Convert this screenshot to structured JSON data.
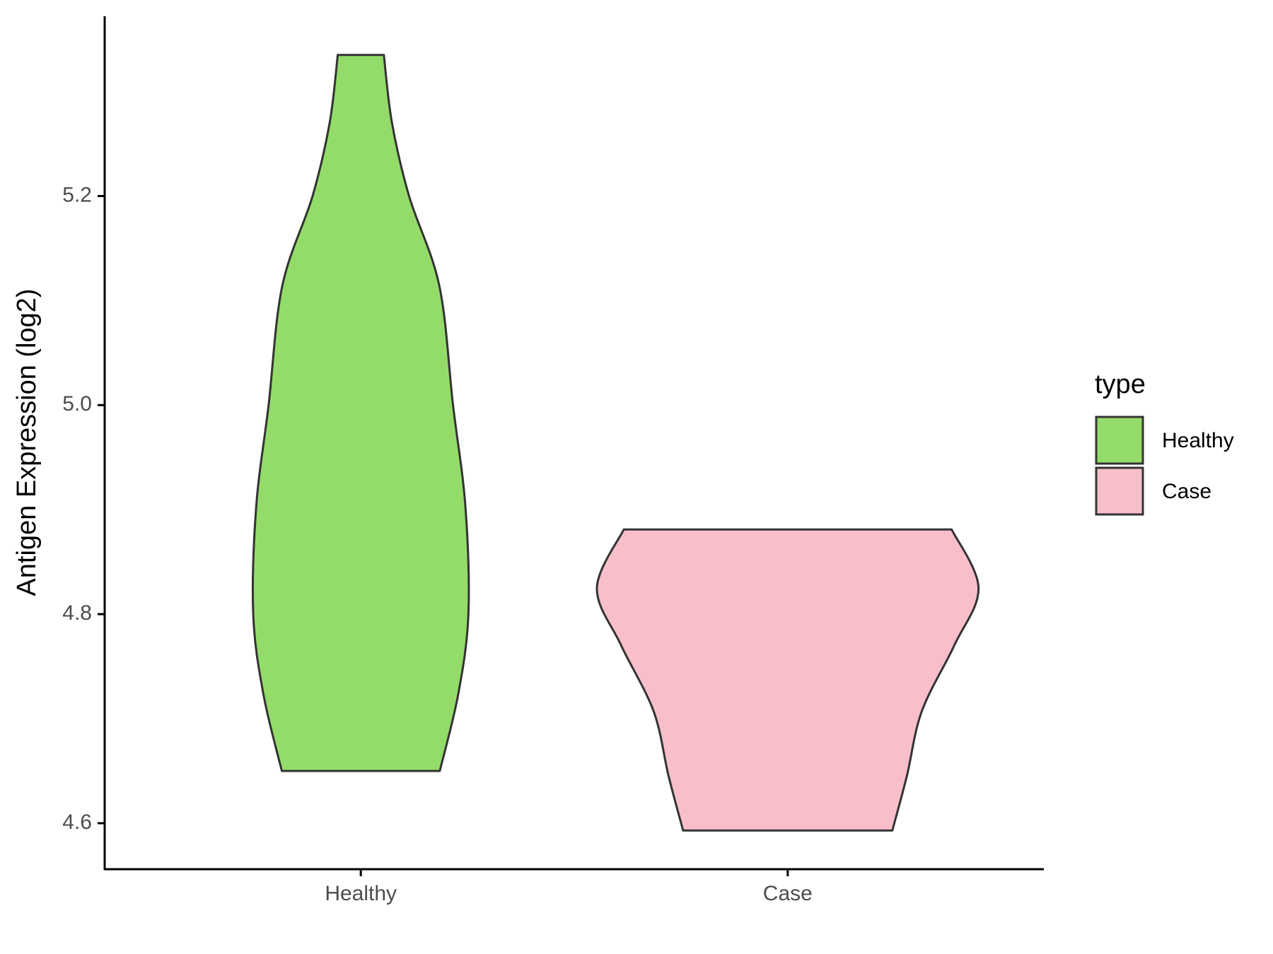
{
  "chart_data": {
    "type": "violin",
    "y_label": "Antigen Expression (log2)",
    "legend_title": "type",
    "categories": [
      "Healthy",
      "Case"
    ],
    "series": [
      {
        "name": "Healthy",
        "color": "#94DC6A",
        "y": [
          4.65,
          4.723,
          4.8,
          4.903,
          5.0,
          5.114,
          5.2,
          5.27,
          5.335
        ],
        "width": [
          0.185,
          0.228,
          0.252,
          0.245,
          0.216,
          0.184,
          0.113,
          0.073,
          0.054
        ]
      },
      {
        "name": "Case",
        "color": "#F8BFCA",
        "y": [
          4.593,
          4.645,
          4.707,
          4.77,
          4.825,
          4.881
        ],
        "width": [
          0.245,
          0.279,
          0.314,
          0.39,
          0.447,
          0.384
        ]
      }
    ],
    "ylim": [
      4.556,
      5.372
    ],
    "yticks": [
      {
        "value": 4.6,
        "label": "4.6"
      },
      {
        "value": 4.8,
        "label": "4.8"
      },
      {
        "value": 5.0,
        "label": "5.0"
      },
      {
        "value": 5.2,
        "label": "5.2"
      }
    ],
    "legend_position": "right"
  }
}
